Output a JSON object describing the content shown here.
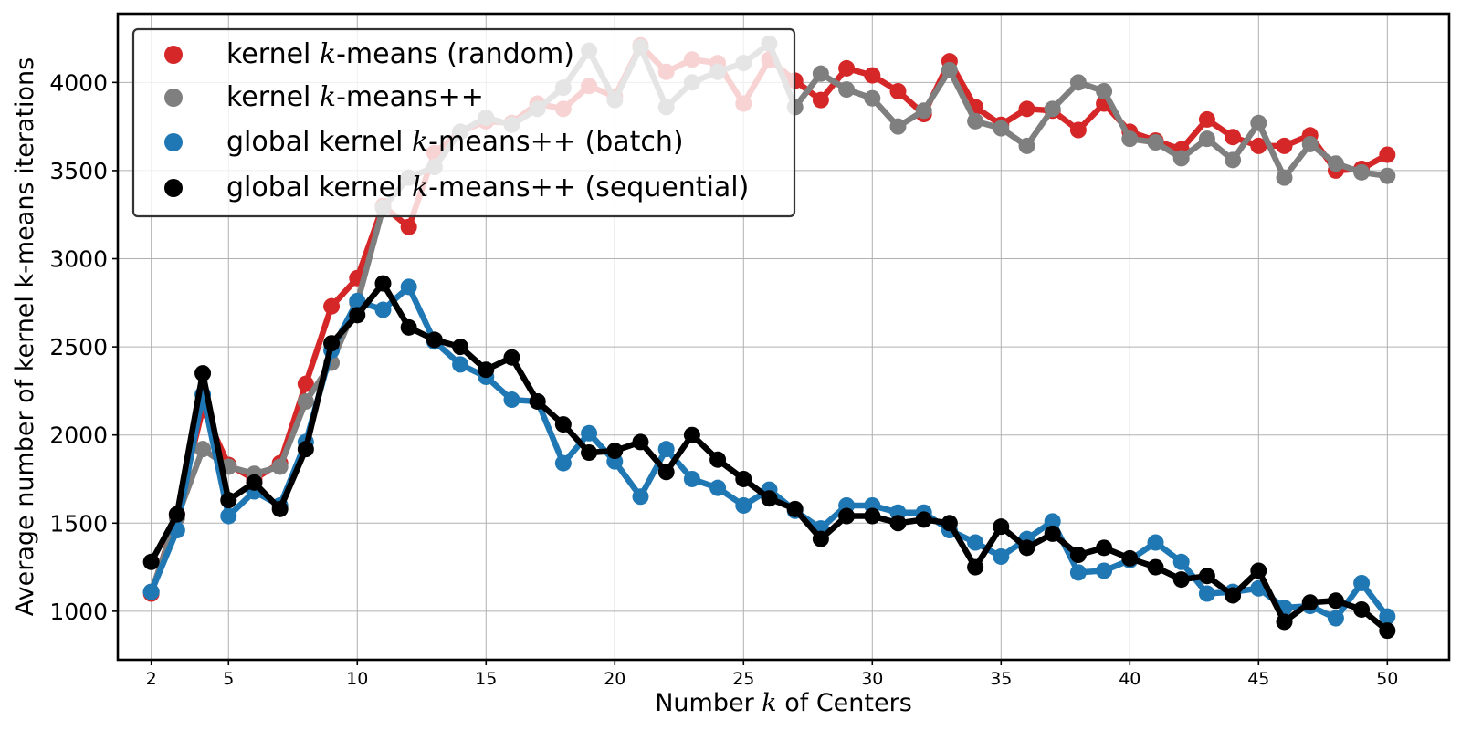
{
  "chart_data": {
    "type": "line",
    "title": "",
    "xlabel": {
      "before": "Number ",
      "var": "k",
      "after": " of Centers"
    },
    "ylabel": "Average number of kernel k-means iterations",
    "xlim": [
      0.7,
      52.4
    ],
    "ylim": [
      725,
      4390
    ],
    "xticks": [
      2,
      5,
      10,
      15,
      20,
      25,
      30,
      35,
      40,
      45,
      50
    ],
    "yticks": [
      1000,
      1500,
      2000,
      2500,
      3000,
      3500,
      4000
    ],
    "grid": true,
    "legend_position": "top-left",
    "x": [
      2,
      3,
      4,
      5,
      6,
      7,
      8,
      9,
      10,
      11,
      12,
      13,
      14,
      15,
      16,
      17,
      18,
      19,
      20,
      21,
      22,
      23,
      24,
      25,
      26,
      27,
      28,
      29,
      30,
      31,
      32,
      33,
      34,
      35,
      36,
      37,
      38,
      39,
      40,
      41,
      42,
      43,
      44,
      45,
      46,
      47,
      48,
      49,
      50
    ],
    "series": [
      {
        "name": {
          "before": "kernel ",
          "var": "k",
          "after": "-means (random)"
        },
        "color": "#d62728",
        "values": [
          1100,
          1550,
          2150,
          1830,
          1750,
          1840,
          2290,
          2730,
          2890,
          3300,
          3180,
          3600,
          3720,
          3780,
          3770,
          3880,
          3850,
          3980,
          3920,
          4210,
          4060,
          4130,
          4110,
          3880,
          4130,
          4010,
          3900,
          4080,
          4040,
          3950,
          3820,
          4120,
          3860,
          3760,
          3850,
          3840,
          3730,
          3880,
          3720,
          3670,
          3620,
          3790,
          3690,
          3640,
          3640,
          3700,
          3500,
          3510,
          3590
        ]
      },
      {
        "name": {
          "before": "kernel ",
          "var": "k",
          "after": "-means++"
        },
        "color": "#7f7f7f",
        "values": [
          1110,
          1530,
          1920,
          1820,
          1780,
          1820,
          2190,
          2410,
          2750,
          3290,
          3460,
          3520,
          3720,
          3800,
          3760,
          3850,
          3970,
          4180,
          3900,
          4200,
          3860,
          4000,
          4060,
          4110,
          4220,
          3860,
          4050,
          3960,
          3910,
          3750,
          3840,
          4070,
          3780,
          3740,
          3640,
          3850,
          4000,
          3950,
          3680,
          3660,
          3570,
          3680,
          3560,
          3770,
          3460,
          3650,
          3540,
          3490,
          3470
        ]
      },
      {
        "name": {
          "before": "global kernel ",
          "var": "k",
          "after": "-means++ (batch)"
        },
        "color": "#1f77b4",
        "values": [
          1110,
          1460,
          2230,
          1540,
          1680,
          1600,
          1960,
          2480,
          2760,
          2710,
          2840,
          2530,
          2400,
          2330,
          2200,
          2190,
          1840,
          2010,
          1850,
          1650,
          1920,
          1750,
          1700,
          1600,
          1690,
          1570,
          1470,
          1600,
          1600,
          1560,
          1560,
          1460,
          1390,
          1310,
          1410,
          1510,
          1220,
          1230,
          1290,
          1390,
          1280,
          1100,
          1110,
          1130,
          1020,
          1030,
          960,
          1160,
          970
        ]
      },
      {
        "name": {
          "before": "global kernel ",
          "var": "k",
          "after": "-means++ (sequential)"
        },
        "color": "#000000",
        "values": [
          1280,
          1550,
          2350,
          1630,
          1730,
          1580,
          1920,
          2520,
          2680,
          2860,
          2610,
          2540,
          2500,
          2370,
          2440,
          2190,
          2060,
          1900,
          1910,
          1960,
          1790,
          2000,
          1860,
          1750,
          1640,
          1580,
          1410,
          1540,
          1540,
          1500,
          1520,
          1500,
          1250,
          1480,
          1360,
          1440,
          1320,
          1360,
          1300,
          1250,
          1180,
          1200,
          1090,
          1230,
          940,
          1050,
          1060,
          1010,
          890
        ]
      }
    ]
  }
}
